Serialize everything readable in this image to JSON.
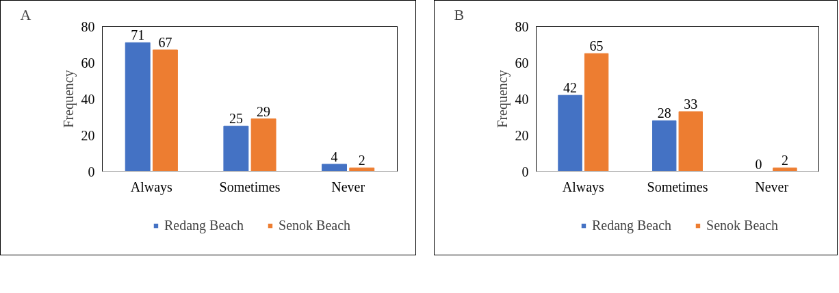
{
  "chart_data": [
    {
      "type": "bar",
      "title": "A",
      "ylabel": "Frequency",
      "categories": [
        "Always",
        "Sometimes",
        "Never"
      ],
      "series": [
        {
          "name": "Redang Beach",
          "color": "#4472c4",
          "values": [
            71,
            25,
            4
          ]
        },
        {
          "name": "Senok Beach",
          "color": "#ed7d31",
          "values": [
            67,
            29,
            2
          ]
        }
      ],
      "ylim": [
        0,
        80
      ],
      "yticks": [
        0,
        20,
        40,
        60,
        80
      ],
      "data_labels": true,
      "legend": "bottom",
      "grid": false
    },
    {
      "type": "bar",
      "title": "B",
      "ylabel": "Frequency",
      "categories": [
        "Always",
        "Sometimes",
        "Never"
      ],
      "series": [
        {
          "name": "Redang Beach",
          "color": "#4472c4",
          "values": [
            42,
            28,
            0
          ]
        },
        {
          "name": "Senok Beach",
          "color": "#ed7d31",
          "values": [
            65,
            33,
            2
          ]
        }
      ],
      "ylim": [
        0,
        80
      ],
      "yticks": [
        0,
        20,
        40,
        60,
        80
      ],
      "data_labels": true,
      "legend": "bottom",
      "grid": false
    }
  ]
}
